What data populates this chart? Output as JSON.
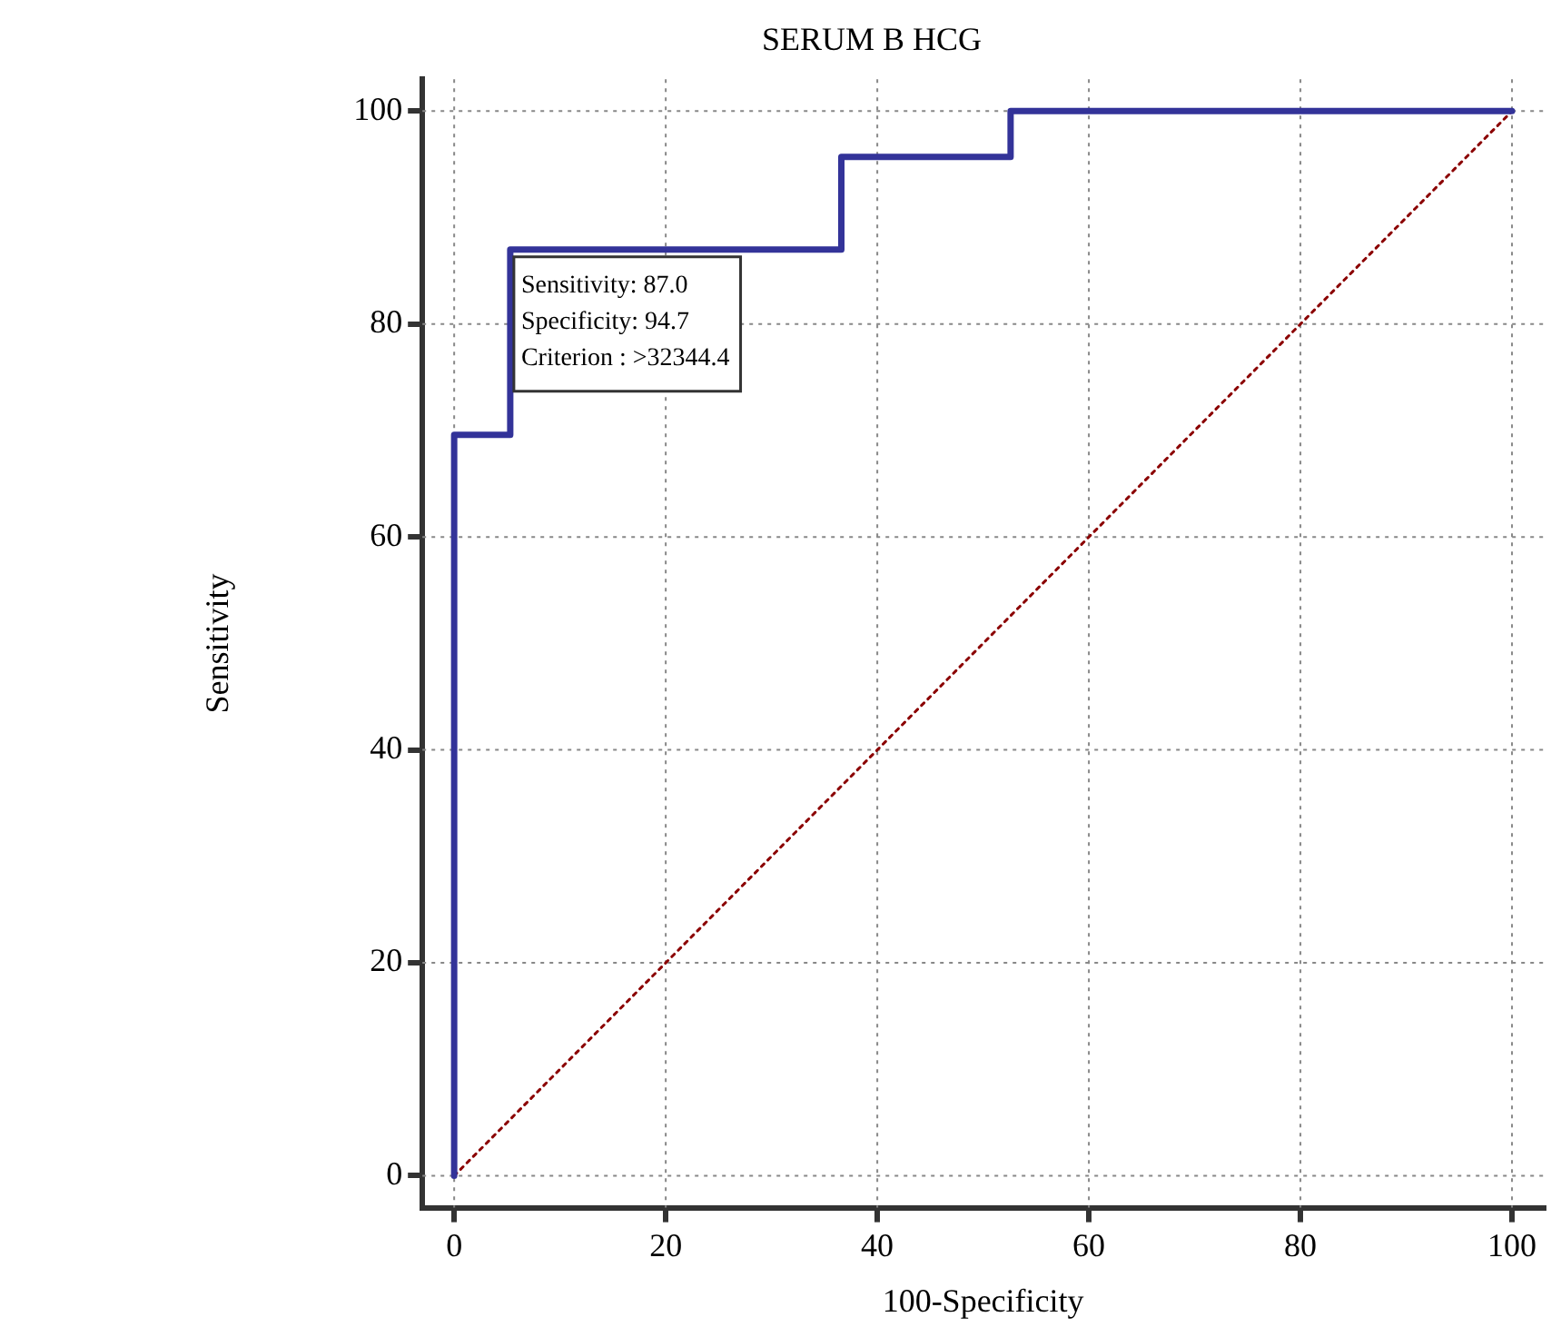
{
  "chart_data": {
    "type": "line",
    "title": "SERUM B HCG",
    "xlabel": "100-Specificity",
    "ylabel": "Sensitivity",
    "xlim": [
      -3,
      103
    ],
    "ylim": [
      -3,
      103
    ],
    "xticks": [
      0,
      20,
      40,
      60,
      80,
      100
    ],
    "yticks": [
      0,
      20,
      40,
      60,
      80,
      100
    ],
    "grid": true,
    "legend": false,
    "series": [
      {
        "type": "step",
        "color": "#333399",
        "x": [
          0,
          0,
          5.3,
          36.6,
          52.6,
          100
        ],
        "values": [
          0,
          69.6,
          87.0,
          95.7,
          100,
          100
        ],
        "line_style": "solid"
      },
      {
        "type": "line",
        "color": "#8b0000",
        "x": [
          0,
          100
        ],
        "values": [
          0,
          100
        ],
        "line_style": "dotted"
      }
    ],
    "annotations": [
      {
        "text": "Sensitivity: 87.0\nSpecificity: 94.7\nCriterion : >32344.4",
        "x": 5.3,
        "y": 87.0
      }
    ]
  }
}
